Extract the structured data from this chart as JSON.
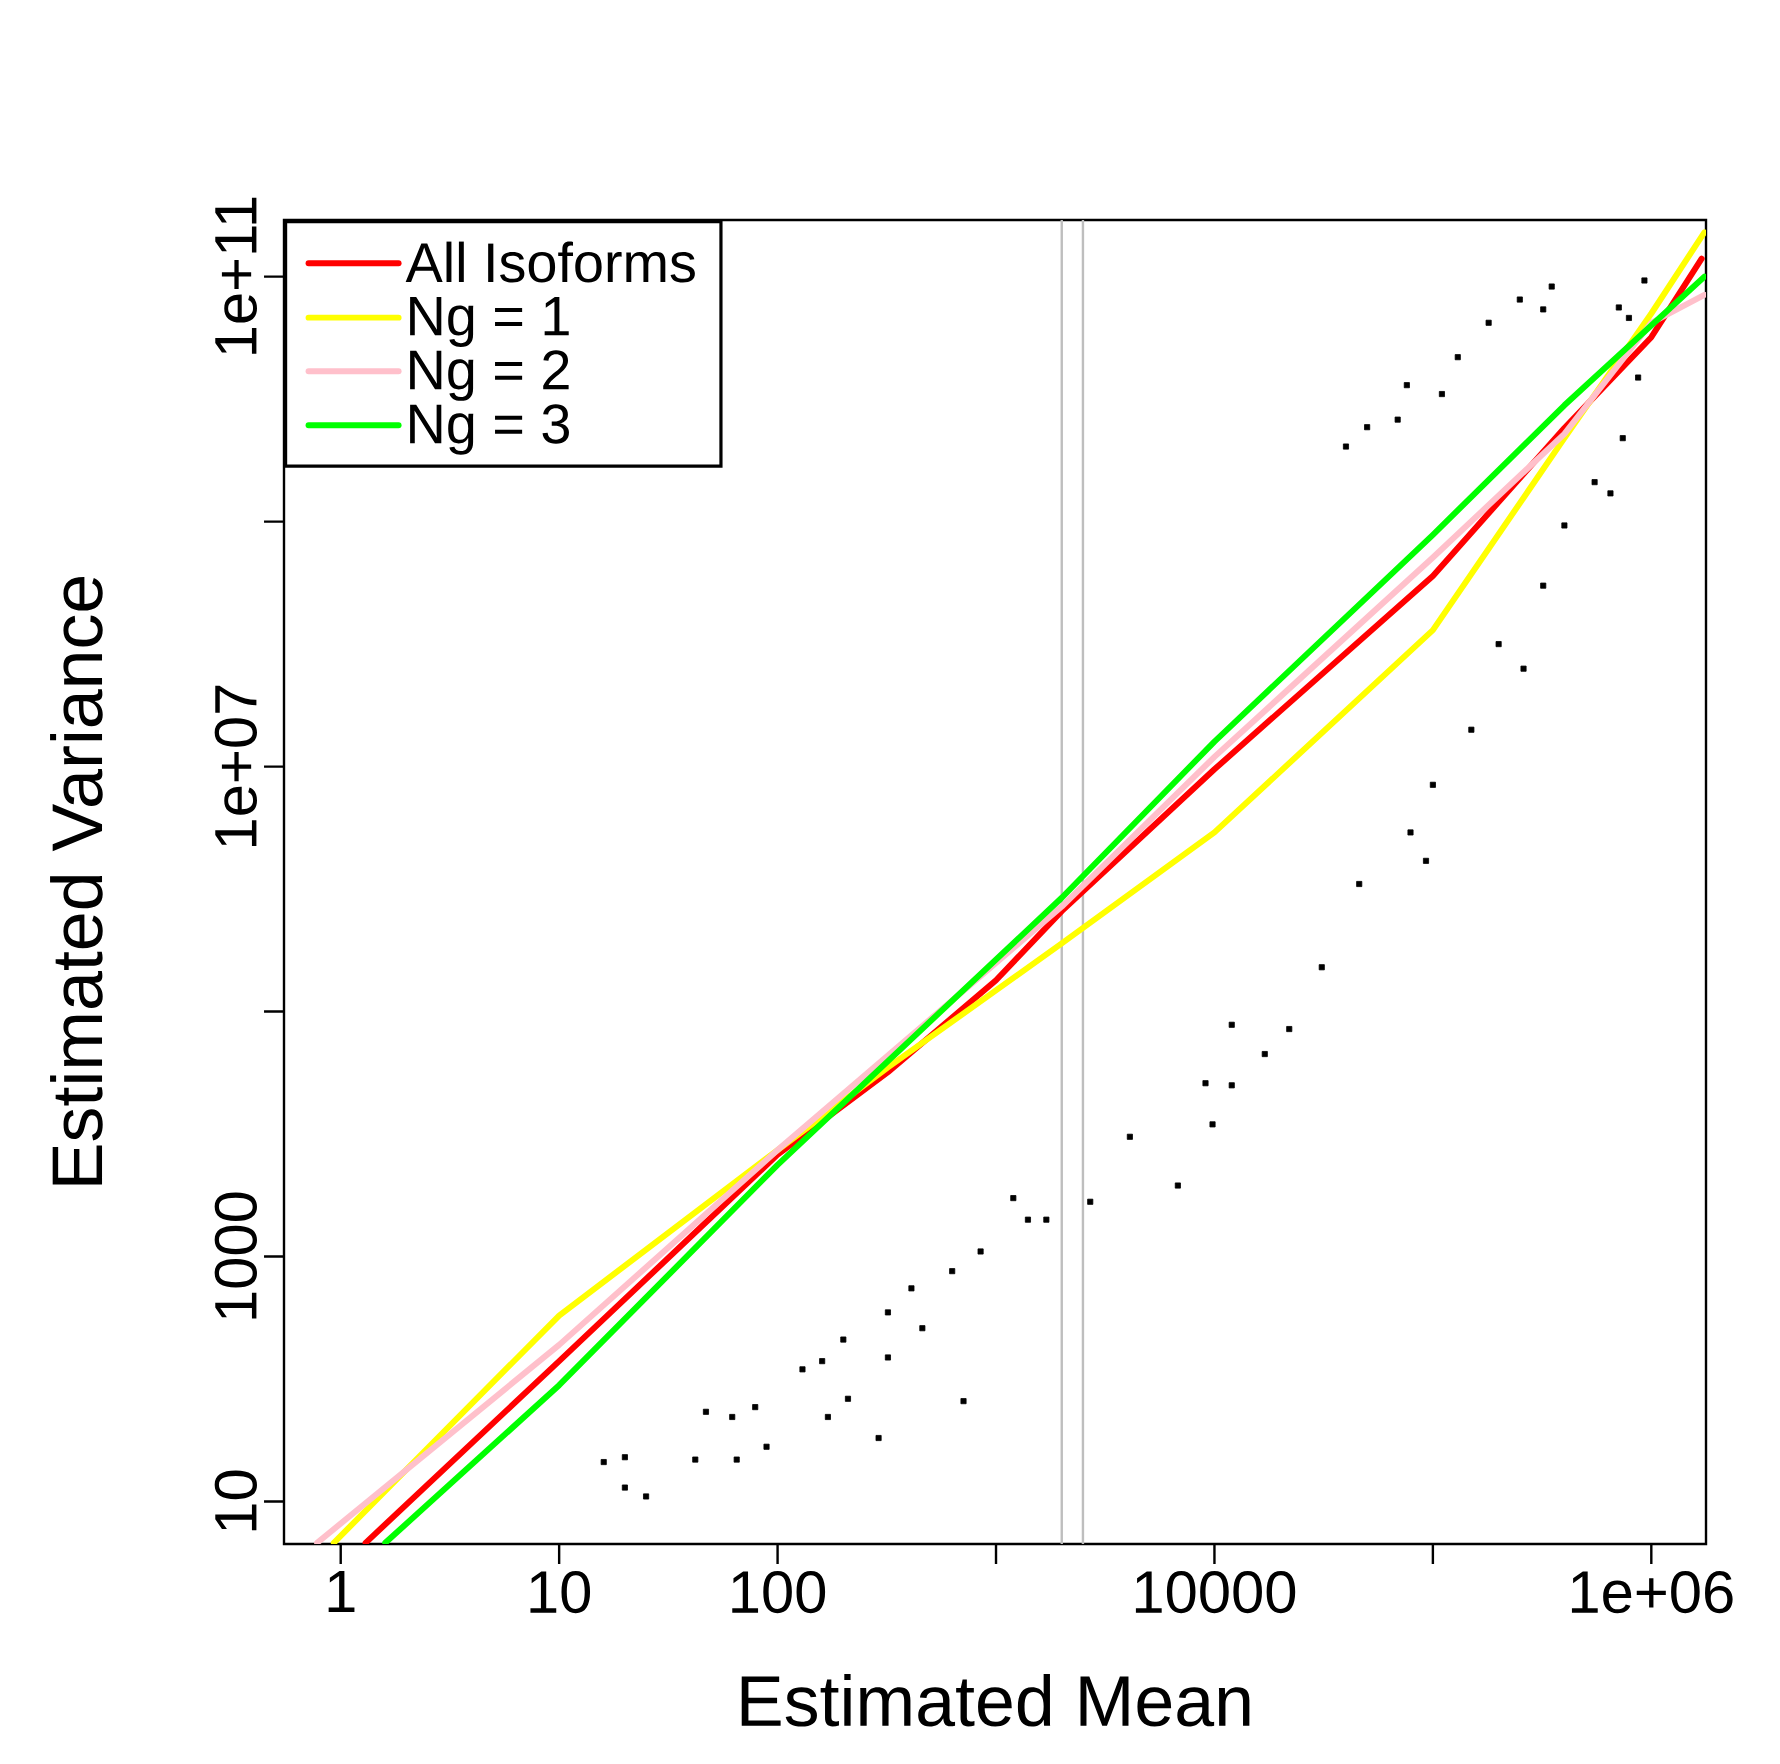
{
  "chart_data": {
    "type": "line",
    "xlabel": "Estimated Mean",
    "ylabel": "Estimated Variance",
    "log": "xy",
    "legend": "top left",
    "xlim": [
      0.55,
      1780000
    ],
    "ylim": [
      4.5,
      290000000000
    ],
    "xticks": [
      1,
      10,
      100,
      {
        "value": 1000,
        "label": null
      },
      10000,
      {
        "value": 100000,
        "label": null
      },
      {
        "value": 1000000,
        "label": "1e+06"
      }
    ],
    "yticks": [
      10,
      1000,
      {
        "value": 100000,
        "label": null
      },
      {
        "value": 10000000,
        "label": "1e+07"
      },
      {
        "value": 1000000000,
        "label": null
      },
      {
        "value": 100000000000,
        "label": "1e+11"
      }
    ],
    "ref_lines": [
      {
        "axis": "x",
        "value": 2000,
        "color": "#bebebe"
      },
      {
        "axis": "x",
        "value": 2500,
        "color": "#bebebe"
      }
    ],
    "series": [
      {
        "type": "scatter",
        "marker": "square",
        "color": "#000000",
        "x": [
          16,
          20,
          25,
          20,
          42,
          47,
          62,
          79,
          89,
          65,
          130,
          160,
          170,
          210,
          200,
          290,
          320,
          320,
          410,
          460,
          630,
          710,
          850,
          1200,
          1400,
          1700,
          2700,
          4100,
          6800,
          9100,
          9800,
          12000,
          12000,
          17000,
          22000,
          31000,
          46000,
          79000,
          93000,
          100000,
          150000,
          200000,
          260000,
          320000,
          400000,
          550000,
          650000,
          740000,
          40000,
          50000,
          69000,
          76000,
          110000,
          130000,
          180000,
          250000,
          320000,
          350000,
          710000,
          790000,
          870000,
          930000
        ],
        "values": [
          21,
          13,
          11,
          23,
          22,
          54,
          49,
          59,
          28,
          22,
          120,
          140,
          49,
          69,
          210,
          33,
          350,
          150,
          550,
          260,
          760,
          66,
          1100,
          3000,
          2000,
          2000,
          2800,
          9500,
          3800,
          26000,
          12000,
          78000,
          25000,
          45000,
          72000,
          230000,
          1100000,
          2900000,
          1700000,
          7100000,
          20000000,
          100000000,
          63000000,
          300000000,
          930000000,
          2100000000,
          1700000000,
          4800000000,
          4100000000,
          5900000000,
          6800000000,
          13000000000,
          11000000000,
          22000000000,
          42000000000,
          65000000000,
          54000000000,
          83000000000,
          56000000000,
          46000000000,
          15000000000,
          93000000000
        ]
      },
      {
        "name": "All Isoforms",
        "color": "#ff0000",
        "marker": "none",
        "line_style": "solid",
        "x": [
          1.3,
          10,
          100,
          320,
          1000,
          2000,
          10000,
          100000,
          400000,
          1000000,
          1700000
        ],
        "values": [
          4.6,
          140,
          6800,
          32000,
          180000,
          660000,
          9500000,
          360000000,
          5800000000,
          32000000000,
          140000000000
        ]
      },
      {
        "name": "Ng = 1",
        "color": "#ffff00",
        "marker": "none",
        "line_style": "solid",
        "x": [
          0.93,
          10,
          100,
          320,
          2000,
          10000,
          100000,
          400000,
          1000000,
          1750000
        ],
        "values": [
          4.6,
          330,
          7400,
          35000,
          360000,
          2900000,
          130000000,
          4800000000,
          50000000000,
          230000000000
        ]
      },
      {
        "name": "Ng = 2",
        "color": "#ffc0cb",
        "marker": "none",
        "line_style": "solid",
        "x": [
          0.78,
          10,
          100,
          2000,
          10000,
          100000,
          400000,
          1000000,
          1750000
        ],
        "values": [
          4.6,
          190,
          7400,
          720000,
          12000000,
          510000000,
          5200000000,
          42000000000,
          71000000000
        ]
      },
      {
        "name": "Ng = 3",
        "color": "#00ff00",
        "marker": "none",
        "line_style": "solid",
        "x": [
          1.6,
          10,
          100,
          2000,
          10000,
          100000,
          400000,
          1750000
        ],
        "values": [
          4.6,
          89,
          5600,
          850000,
          16000000,
          780000000,
          8900000000,
          100000000000
        ]
      }
    ]
  }
}
